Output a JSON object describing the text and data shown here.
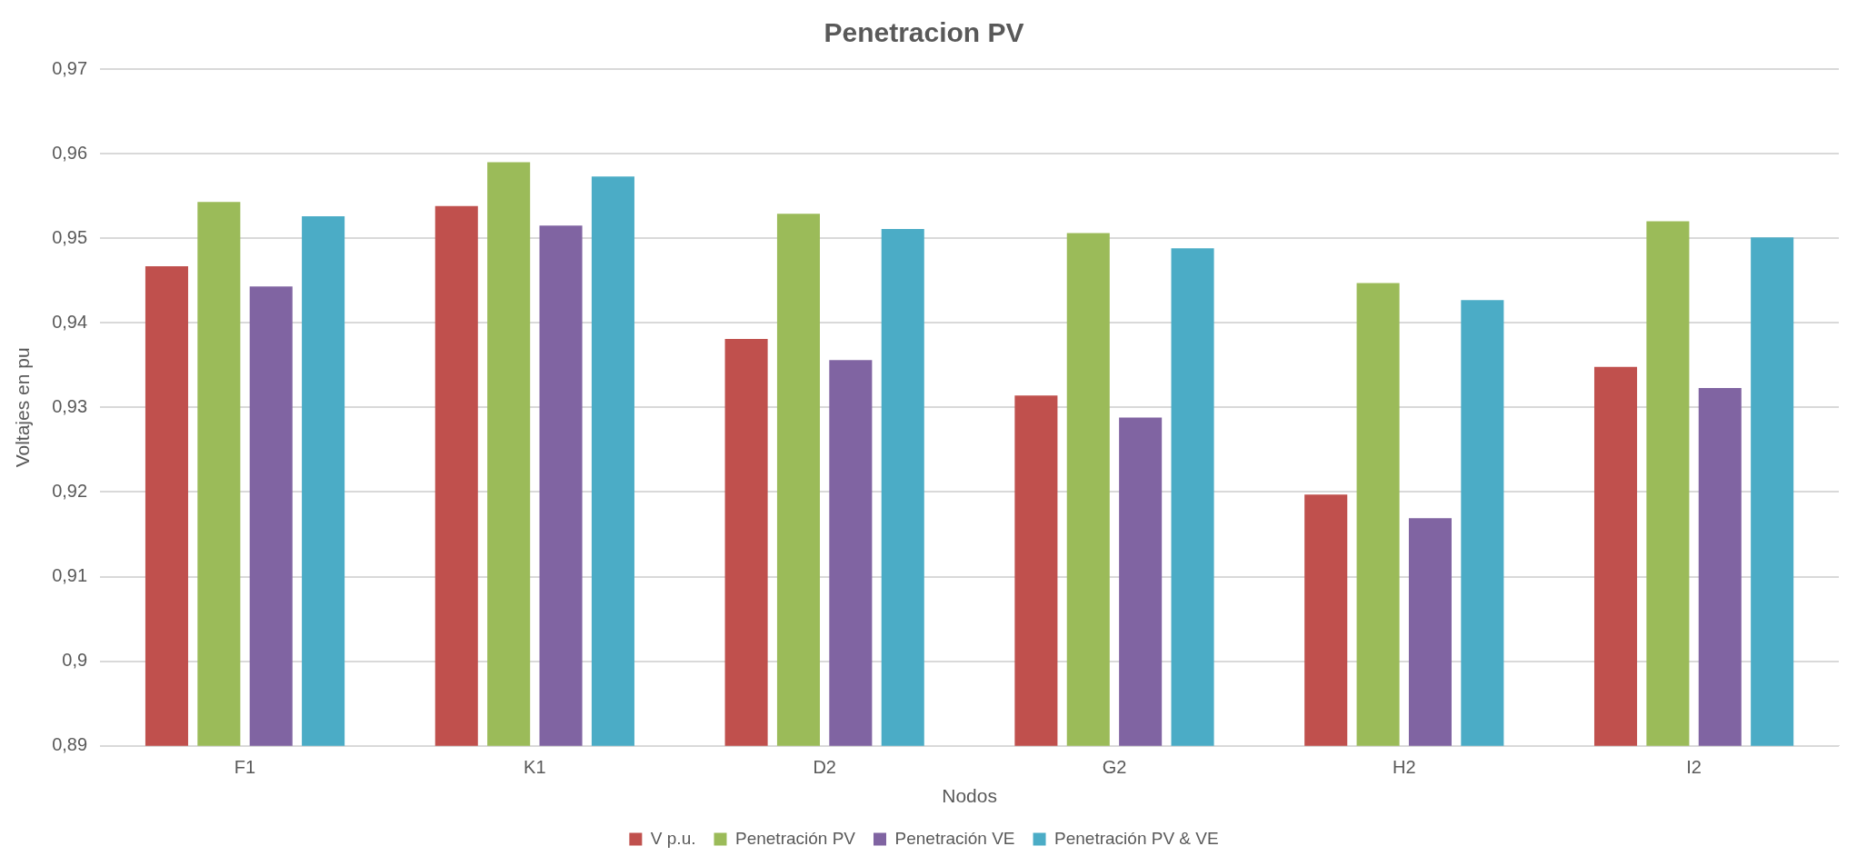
{
  "chart_data": {
    "type": "bar",
    "title": "Penetracion PV",
    "xlabel": "Nodos",
    "ylabel": "Voltajes en pu",
    "categories": [
      "F1",
      "K1",
      "D2",
      "G2",
      "H2",
      "I2"
    ],
    "series": [
      {
        "name": "V p.u.",
        "color": "#c0504d",
        "values": [
          0.9467,
          0.9538,
          0.9381,
          0.9314,
          0.9197,
          0.9348
        ]
      },
      {
        "name": "Penetración PV",
        "color": "#9bbb59",
        "values": [
          0.9543,
          0.959,
          0.9529,
          0.9506,
          0.9447,
          0.952
        ]
      },
      {
        "name": "Penetración VE",
        "color": "#8064a2",
        "values": [
          0.9443,
          0.9515,
          0.9356,
          0.9288,
          0.9169,
          0.9323
        ]
      },
      {
        "name": "Penetración PV & VE",
        "color": "#4bacc6",
        "values": [
          0.9526,
          0.9573,
          0.9511,
          0.9488,
          0.9427,
          0.9501
        ]
      }
    ],
    "ylim": [
      0.89,
      0.97
    ],
    "yticks": [
      {
        "value": 0.89,
        "label": "0,89"
      },
      {
        "value": 0.9,
        "label": "0,9"
      },
      {
        "value": 0.91,
        "label": "0,91"
      },
      {
        "value": 0.92,
        "label": "0,92"
      },
      {
        "value": 0.93,
        "label": "0,93"
      },
      {
        "value": 0.94,
        "label": "0,94"
      },
      {
        "value": 0.95,
        "label": "0,95"
      },
      {
        "value": 0.96,
        "label": "0,96"
      },
      {
        "value": 0.97,
        "label": "0,97"
      }
    ],
    "grid": "y",
    "legend": "bottom"
  }
}
